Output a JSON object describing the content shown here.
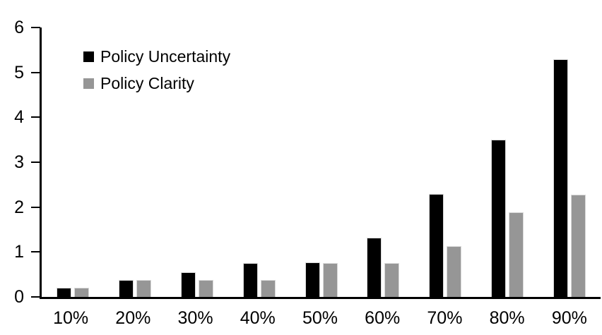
{
  "chart_data": {
    "type": "bar",
    "title": "",
    "xlabel": "",
    "ylabel": "",
    "categories": [
      "10%",
      "20%",
      "30%",
      "40%",
      "50%",
      "60%",
      "70%",
      "80%",
      "90%"
    ],
    "series": [
      {
        "name": "Policy Uncertainty",
        "color": "#000000",
        "values": [
          0.2,
          0.38,
          0.55,
          0.76,
          0.77,
          1.32,
          2.3,
          3.5,
          5.3
        ]
      },
      {
        "name": "Policy Clarity",
        "color": "#969696",
        "values": [
          0.2,
          0.38,
          0.38,
          0.38,
          0.76,
          0.76,
          1.13,
          1.88,
          2.28
        ]
      }
    ],
    "ylim": [
      0,
      6
    ],
    "y_ticks": [
      0,
      1,
      2,
      3,
      4,
      5,
      6
    ],
    "grid": false,
    "legend_position": "top-left",
    "axis_color": "#000000",
    "bar_outline_color": "#d9d9d9",
    "background_color": "#ffffff"
  }
}
